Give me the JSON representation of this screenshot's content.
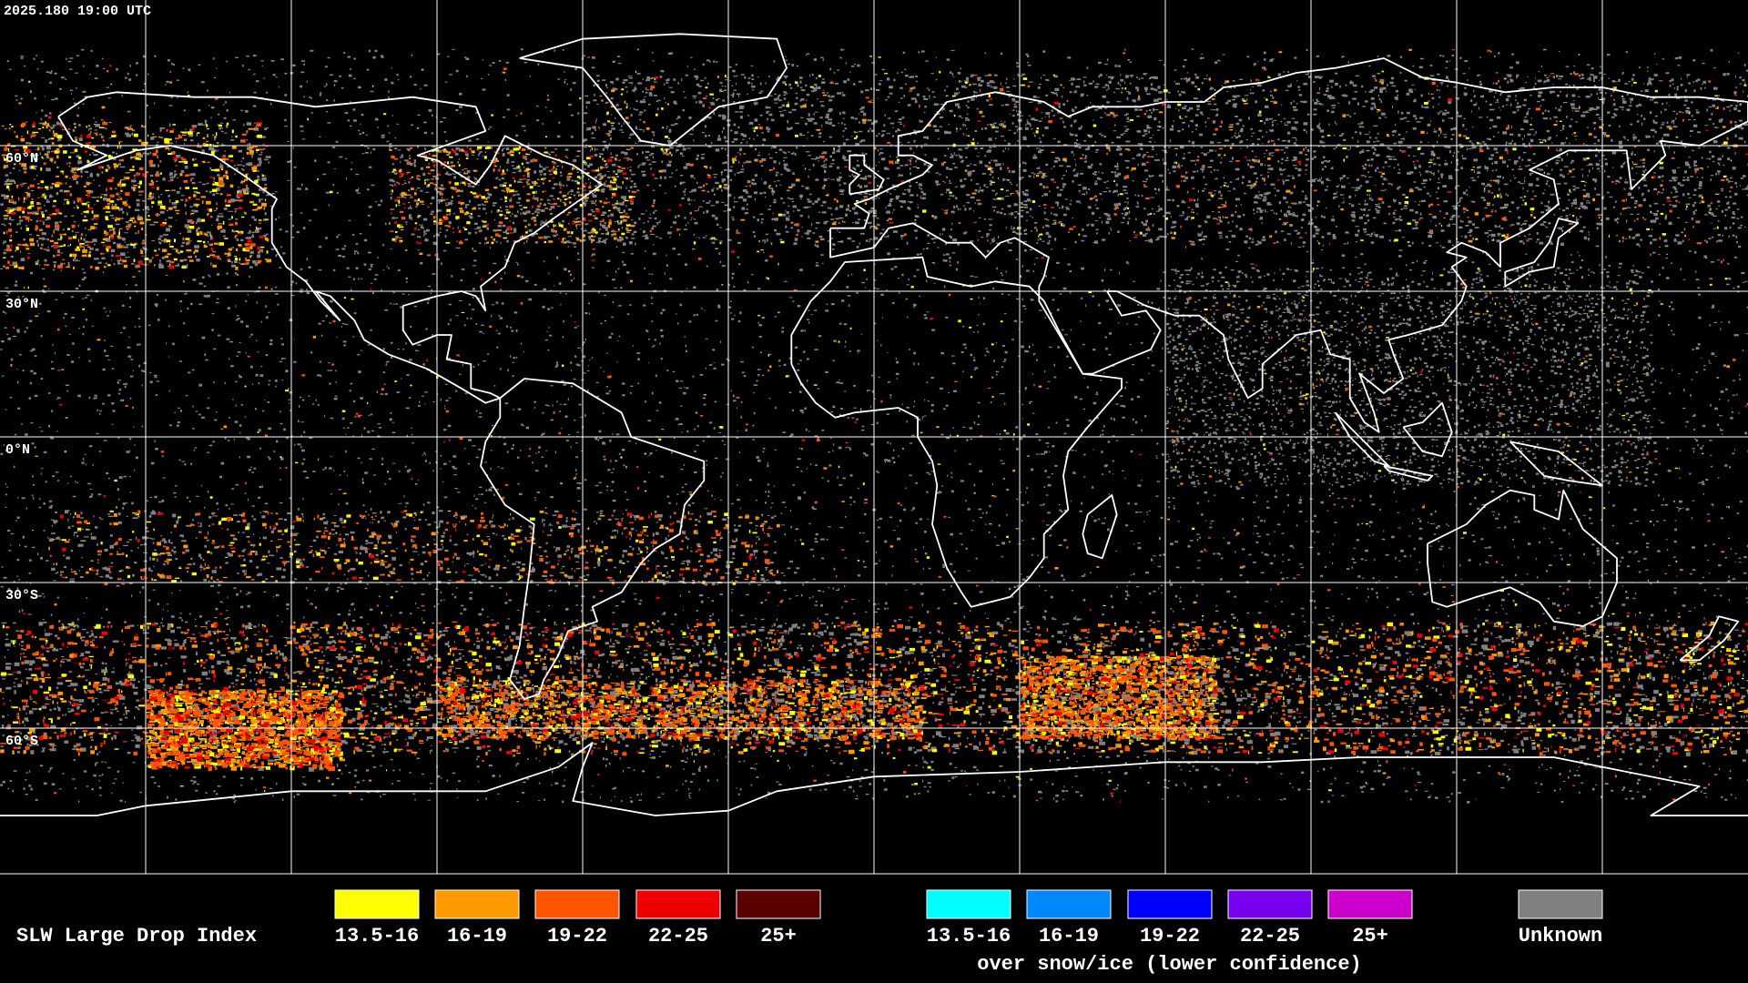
{
  "header": {
    "timestamp": "2025.180 19:00 UTC"
  },
  "map": {
    "lat_labels": [
      "60°N",
      "30°N",
      "0°N",
      "30°S",
      "60°S"
    ]
  },
  "legend": {
    "title": "SLW Large Drop Index",
    "groups": [
      {
        "items": [
          {
            "label": "13.5-16",
            "color": "#ffff00"
          },
          {
            "label": "16-19",
            "color": "#ff9900"
          },
          {
            "label": "19-22",
            "color": "#ff5500"
          },
          {
            "label": "22-25",
            "color": "#ee0000"
          },
          {
            "label": "25+",
            "color": "#5a0000"
          }
        ]
      },
      {
        "items": [
          {
            "label": "13.5-16",
            "color": "#00ffff"
          },
          {
            "label": "16-19",
            "color": "#0088ff"
          },
          {
            "label": "19-22",
            "color": "#0000ff"
          },
          {
            "label": "22-25",
            "color": "#7700ee"
          },
          {
            "label": "25+",
            "color": "#cc00cc"
          }
        ],
        "caption": "over snow/ice (lower confidence)"
      }
    ],
    "unknown": {
      "label": "Unknown",
      "color": "#808080"
    }
  }
}
